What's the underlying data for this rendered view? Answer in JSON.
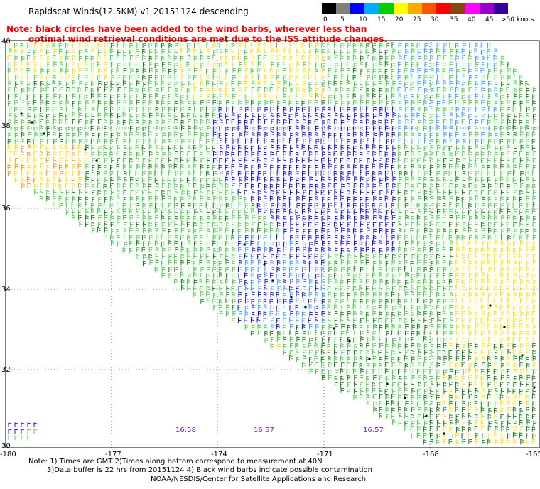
{
  "title": "Rapidscat Winds(12.5KM) v1 20151124 descending",
  "note": {
    "line1": "Note: black circles have been added to the wind barbs, wherever less than",
    "line2": "optimal wind retrieval conditions are met due to the ISS attitude changes."
  },
  "legend": {
    "labels": [
      "0",
      "5",
      "10",
      "15",
      "20",
      "25",
      "30",
      "35",
      "40",
      "45",
      ">50 knots"
    ],
    "colors": [
      "#000000",
      "#7f7f7f",
      "#0000ff",
      "#00aaff",
      "#00cc00",
      "#ffff00",
      "#ffaa00",
      "#ff5500",
      "#ff0000",
      "#8b4513",
      "#ff00ff",
      "#9900cc",
      "#330099"
    ]
  },
  "axes": {
    "x_ticks": [
      "-180",
      "-177",
      "-174",
      "-171",
      "-168",
      "-165"
    ],
    "y_ticks": [
      "40",
      "38",
      "36",
      "34",
      "32",
      "30"
    ]
  },
  "time_labels": [
    "16:58",
    "16:57",
    "16:57"
  ],
  "barb_colors": {
    "dark_green": "#007700",
    "green": "#33cc33",
    "yellow": "#ffdd00",
    "blue": "#0000cc",
    "light_blue": "#3399ff",
    "orange": "#ff8800"
  },
  "footer": {
    "line1": "Note: 1) Times are GMT 2)Times along bottom correspond to measurement at 40N",
    "line2": "3)Data buffer is 22 hrs from 20151124 4) Black wind barbs indicate possible contamination",
    "line3": "NOAA/NESDIS/Center for Satellite Applications and Research"
  }
}
